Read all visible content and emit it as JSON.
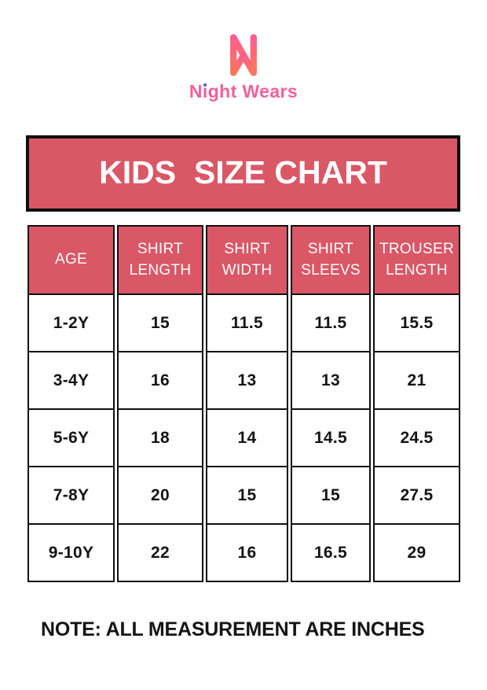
{
  "brand": {
    "name": "Night Wears",
    "name_parts": {
      "before_i": "N",
      "i_dotless": "ı",
      "after_i": "ght Wears"
    },
    "colors": {
      "text": "#F2609B",
      "i_dot": "#5A4FCF",
      "mark_gradient_top": "#FE5C8F",
      "mark_gradient_bottom": "#F87A58"
    }
  },
  "banner": {
    "title": "KIDS  SIZE CHART",
    "bg": "#DA5766",
    "text_color": "#FFFFFF",
    "border_color": "#0D0D0D"
  },
  "theme": {
    "table_border": "#101010",
    "header_bg": "#DA5766",
    "header_text": "#FFFFFF",
    "cell_text": "#141414",
    "page_bg": "#FFFFFF"
  },
  "chart_data": {
    "type": "table",
    "title": "KIDS SIZE CHART",
    "columns": [
      "AGE",
      "SHIRT LENGTH",
      "SHIRT WIDTH",
      "SHIRT SLEEVS",
      "TROUSER LENGTH"
    ],
    "rows": [
      [
        "1-2Y",
        "15",
        "11.5",
        "11.5",
        "15.5"
      ],
      [
        "3-4Y",
        "16",
        "13",
        "13",
        "21"
      ],
      [
        "5-6Y",
        "18",
        "14",
        "14.5",
        "24.5"
      ],
      [
        "7-8Y",
        "20",
        "15",
        "15",
        "27.5"
      ],
      [
        "9-10Y",
        "22",
        "16",
        "16.5",
        "29"
      ]
    ],
    "units": "inches"
  },
  "note": "NOTE: ALL MEASUREMENT ARE INCHES"
}
